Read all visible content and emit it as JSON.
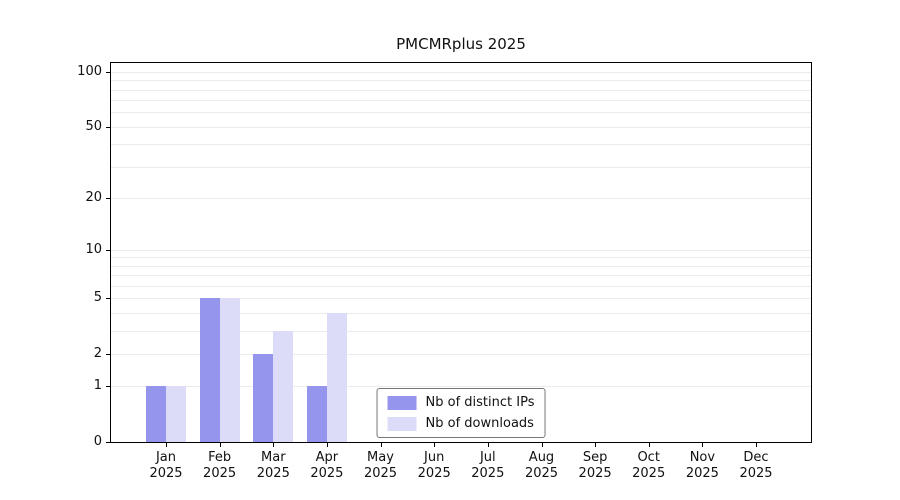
{
  "chart_data": {
    "type": "bar",
    "title": "PMCMRplus 2025",
    "categories": [
      "Jan",
      "Feb",
      "Mar",
      "Apr",
      "May",
      "Jun",
      "Jul",
      "Aug",
      "Sep",
      "Oct",
      "Nov",
      "Dec"
    ],
    "year": "2025",
    "series": [
      {
        "name": "Nb of distinct IPs",
        "color": "#9595ee",
        "values": [
          1,
          5,
          2,
          1,
          0,
          0,
          0,
          0,
          0,
          0,
          0,
          0
        ]
      },
      {
        "name": "Nb of downloads",
        "color": "#dcdcf9",
        "values": [
          1,
          5,
          3,
          4,
          0,
          0,
          0,
          0,
          0,
          0,
          0,
          0
        ]
      }
    ],
    "y_scale": "log1p",
    "ylim_max": 100,
    "y_ticks": [
      0,
      1,
      2,
      5,
      10,
      20,
      50,
      100
    ],
    "y_gridlines": [
      1,
      2,
      3,
      4,
      5,
      6,
      7,
      8,
      9,
      10,
      20,
      30,
      40,
      50,
      60,
      70,
      80,
      90,
      100
    ],
    "grid_on": true,
    "legend_position": "bottom-center-inside",
    "colors": {
      "grid": "#ebebeb",
      "axis": "#000000",
      "text": "#111111"
    }
  }
}
